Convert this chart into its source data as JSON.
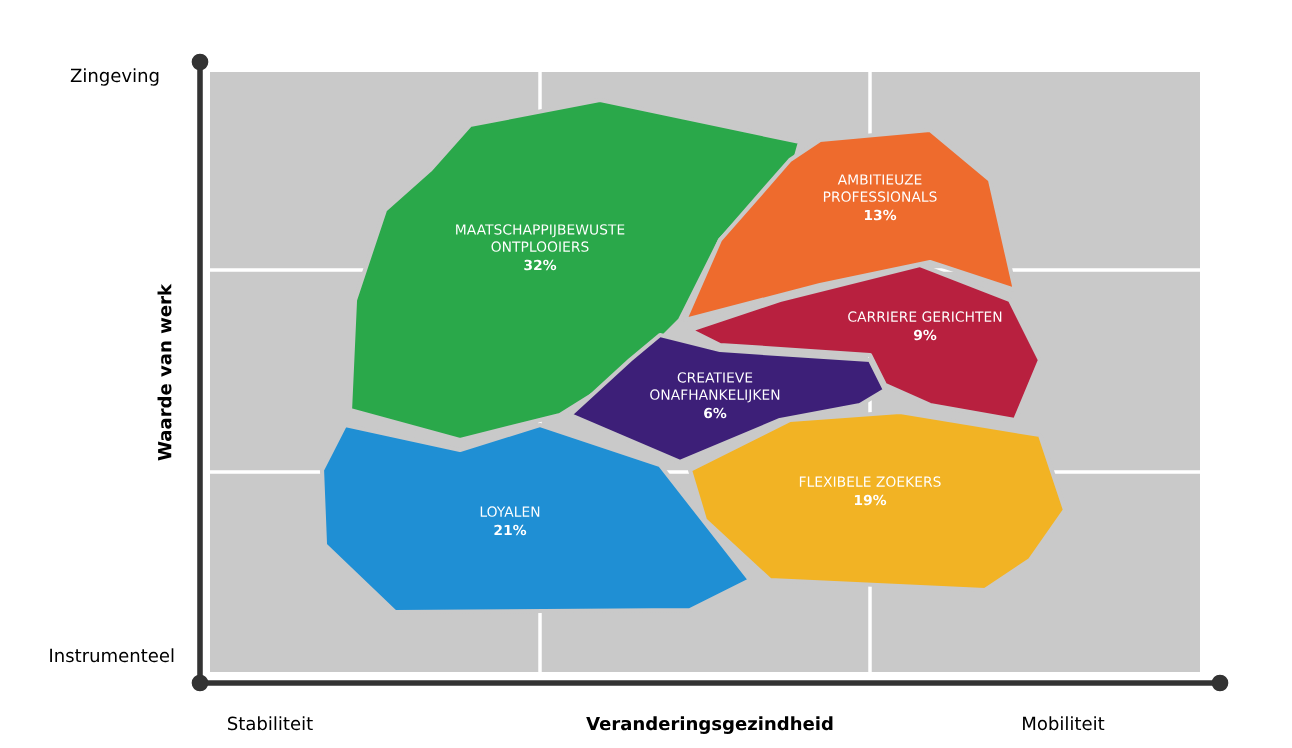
{
  "chart_data": {
    "type": "other",
    "xlabel": "Veranderingsgezindheid",
    "ylabel": "Waarde van werk",
    "categories": [
      "MAATSCHAPPIJBEWUSTE\nONTPLOOIERS",
      "AMBITIEUZE\nPROFESSIONALS",
      "CARRIERE GERICHTEN",
      "CREATIEVE\nONAFHANKELIJKEN",
      "LOYALEN",
      "FLEXIBELE ZOEKERS"
    ],
    "values": [
      32,
      13,
      9,
      6,
      21,
      19
    ],
    "value_labels": [
      "32%",
      "13%",
      "9%",
      "6%",
      "21%",
      "19%"
    ],
    "colors": [
      "#2aa84a",
      "#ee6b2d",
      "#b8203f",
      "#3d1f78",
      "#1f8fd4",
      "#f2b324"
    ],
    "annotations": [
      "Zingeving",
      "Instrumenteel",
      "Stabiliteit",
      "Mobiliteit"
    ]
  }
}
